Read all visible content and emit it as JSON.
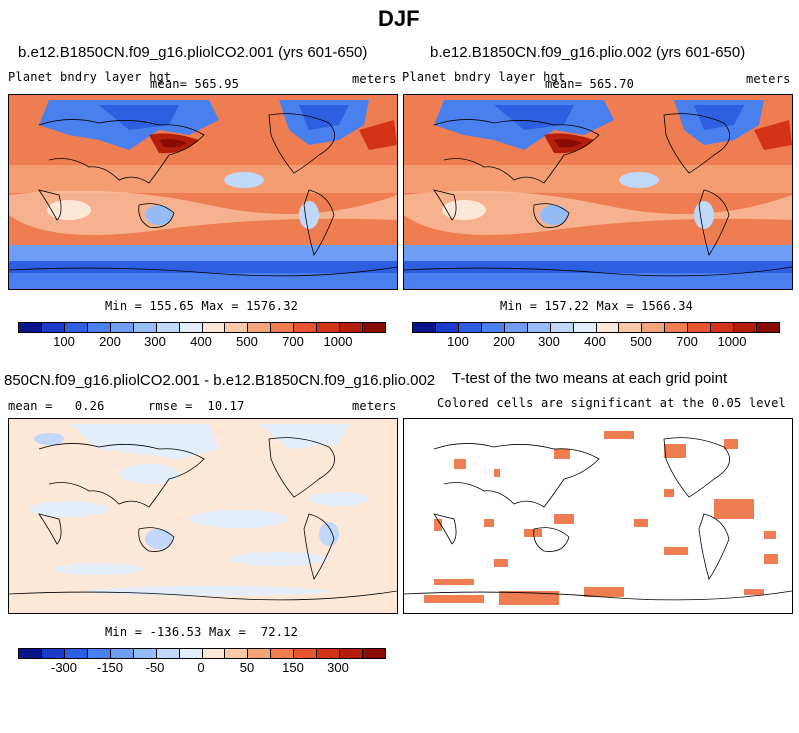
{
  "figure_title": "DJF",
  "panels": {
    "p1": {
      "title": "b.e12.B1850CN.f09_g16.pliolCO2.001 (yrs 601-650)",
      "left_label": "Planet bndry layer hgt",
      "mean_label": "mean= 565.95",
      "units": "meters",
      "minmax": "Min = 155.65 Max = 1576.32"
    },
    "p2": {
      "title": "b.e12.B1850CN.f09_g16.plio.002 (yrs 601-650)",
      "left_label": "Planet bndry layer hgt",
      "mean_label": "mean= 565.70",
      "units": "meters",
      "minmax": "Min = 157.22 Max = 1566.34"
    },
    "p3": {
      "title": "850CN.f09_g16.pliolCO2.001 - b.e12.B1850CN.f09_g16.plio.002",
      "mean_label": "mean =   0.26",
      "rmse_label": "rmse =  10.17",
      "units": "meters",
      "minmax": "Min = -136.53 Max =  72.12"
    },
    "p4": {
      "title": "T-test of the two means at each grid point",
      "subtitle": "Colored cells are significant at the 0.05 level"
    }
  },
  "colorbar_abs": {
    "colors": [
      "#08168a",
      "#1a3cc8",
      "#2e5fe0",
      "#4a80ee",
      "#6e9ef4",
      "#96bcf8",
      "#c0d8fa",
      "#e4eefa",
      "#fde8d8",
      "#f9c9a8",
      "#f5a47a",
      "#ef7d52",
      "#e65530",
      "#d33418",
      "#b41e0c",
      "#8a0a04"
    ],
    "tick_labels": [
      "100",
      "200",
      "300",
      "400",
      "500",
      "700",
      "1000"
    ]
  },
  "colorbar_diff": {
    "colors": [
      "#08168a",
      "#1a3cc8",
      "#2e5fe0",
      "#4a80ee",
      "#6e9ef4",
      "#96bcf8",
      "#c0d8fa",
      "#e4eefa",
      "#fde8d8",
      "#f9c9a8",
      "#f5a47a",
      "#ef7d52",
      "#e65530",
      "#d33418",
      "#b41e0c",
      "#8a0a04"
    ],
    "tick_labels": [
      "-300",
      "-150",
      "-50",
      "0",
      "50",
      "150",
      "300"
    ]
  }
}
